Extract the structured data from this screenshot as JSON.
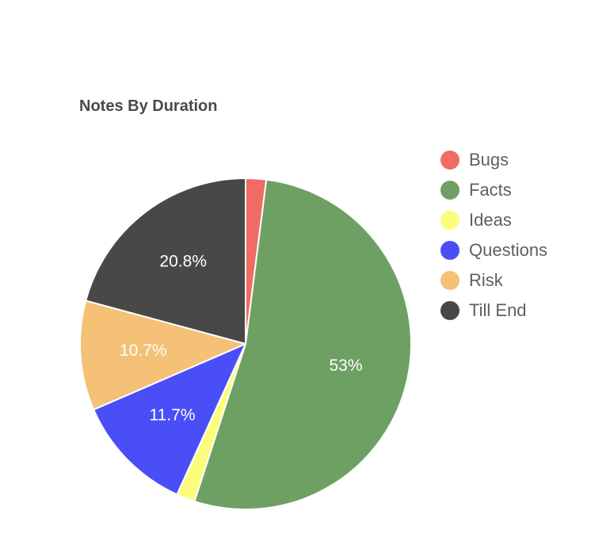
{
  "chart_data": {
    "type": "pie",
    "title": "Notes By Duration",
    "categories": [
      "Bugs",
      "Facts",
      "Ideas",
      "Questions",
      "Risk",
      "Till End"
    ],
    "values": [
      2.0,
      53.0,
      1.8,
      11.7,
      10.7,
      20.8
    ],
    "labels": [
      "",
      "53%",
      "",
      "11.7%",
      "10.7%",
      "20.8%"
    ],
    "colors": [
      "#ef6b64",
      "#6fa063",
      "#fdfd7c",
      "#4a4ef7",
      "#f4c177",
      "#484848"
    ],
    "legend_position": "right"
  }
}
